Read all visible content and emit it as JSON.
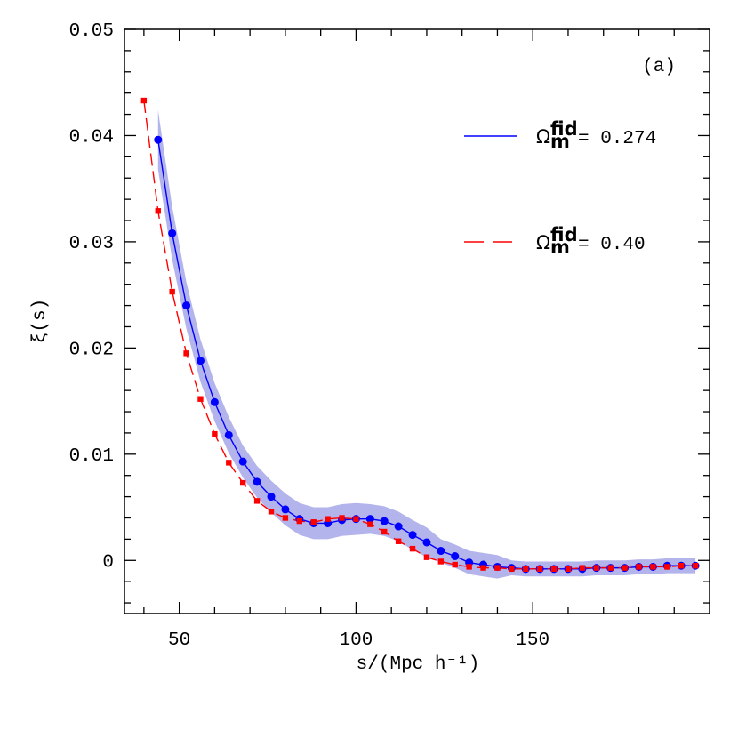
{
  "chart_data": {
    "type": "line",
    "xlabel": "s/(Mpc h⁻¹)",
    "ylabel": "ξ(s)",
    "annotation": "(a)",
    "xlim": [
      34.5,
      200
    ],
    "ylim": [
      -0.005,
      0.05
    ],
    "xticks": [
      50,
      100,
      150
    ],
    "yticks": [
      0,
      0.01,
      0.02,
      0.03,
      0.04,
      0.05
    ],
    "xminorticks": [
      40,
      60,
      70,
      80,
      90,
      110,
      120,
      130,
      140,
      160,
      170,
      180,
      190
    ],
    "yminorticks": [
      -0.004,
      -0.002,
      0.002,
      0.004,
      0.006,
      0.008,
      0.012,
      0.014,
      0.016,
      0.018,
      0.022,
      0.024,
      0.026,
      0.028,
      0.032,
      0.034,
      0.036,
      0.038,
      0.042,
      0.044,
      0.046,
      0.048
    ],
    "band": {
      "color": "#b4b4ec",
      "x": [
        44,
        48,
        52,
        56,
        60,
        64,
        68,
        72,
        76,
        80,
        84,
        88,
        92,
        96,
        100,
        104,
        108,
        112,
        116,
        120,
        124,
        128,
        132,
        136,
        140,
        144,
        148,
        152,
        156,
        160,
        164,
        168,
        172,
        176,
        180,
        184,
        188,
        192,
        196
      ],
      "upper": [
        0.0424,
        0.0333,
        0.0262,
        0.0208,
        0.0167,
        0.0135,
        0.0108,
        0.0089,
        0.0075,
        0.0063,
        0.0054,
        0.005,
        0.005,
        0.0053,
        0.0054,
        0.0053,
        0.0051,
        0.0046,
        0.0038,
        0.0031,
        0.002,
        0.0015,
        0.0009,
        0.0007,
        0.0005,
        0.0,
        -0.0001,
        -0.0001,
        -0.0001,
        -0.0001,
        -0.0001,
        0.0,
        0.0,
        0.0,
        0.0001,
        0.0001,
        0.0002,
        0.0002,
        0.0002
      ],
      "lower": [
        0.0368,
        0.0283,
        0.0218,
        0.0168,
        0.0131,
        0.0101,
        0.0078,
        0.0059,
        0.0045,
        0.0033,
        0.0024,
        0.002,
        0.002,
        0.0023,
        0.0024,
        0.0025,
        0.0023,
        0.0018,
        0.001,
        0.0003,
        -0.0002,
        -0.0007,
        -0.0013,
        -0.0015,
        -0.0017,
        -0.0014,
        -0.0015,
        -0.0015,
        -0.0015,
        -0.0015,
        -0.0015,
        -0.0014,
        -0.0014,
        -0.0014,
        -0.0013,
        -0.0013,
        -0.0012,
        -0.0012,
        -0.0012
      ]
    },
    "series": [
      {
        "label_parts": {
          "symbol": "Ω",
          "sup": "fid",
          "sub": "m",
          "text": "= 0.274"
        },
        "color": "#0000ff",
        "dashed": false,
        "marker": "circle",
        "x": [
          44,
          48,
          52,
          56,
          60,
          64,
          68,
          72,
          76,
          80,
          84,
          88,
          92,
          96,
          100,
          104,
          108,
          112,
          116,
          120,
          124,
          128,
          132,
          136,
          140,
          144,
          148,
          152,
          156,
          160,
          164,
          168,
          172,
          176,
          180,
          184,
          188,
          192,
          196
        ],
        "values": [
          0.0396,
          0.0308,
          0.024,
          0.0188,
          0.0149,
          0.0118,
          0.0093,
          0.0074,
          0.006,
          0.0048,
          0.0039,
          0.0035,
          0.0035,
          0.0038,
          0.0039,
          0.0039,
          0.0037,
          0.0032,
          0.0024,
          0.0017,
          0.0009,
          0.0004,
          -0.0002,
          -0.0004,
          -0.0006,
          -0.0007,
          -0.0008,
          -0.0008,
          -0.0008,
          -0.0008,
          -0.0008,
          -0.0007,
          -0.0007,
          -0.0007,
          -0.0006,
          -0.0006,
          -0.0005,
          -0.0005,
          -0.0005
        ]
      },
      {
        "label_parts": {
          "symbol": "Ω",
          "sup": "fid",
          "sub": "m",
          "text": "= 0.40"
        },
        "color": "#ff0000",
        "dashed": true,
        "marker": "square",
        "x": [
          40,
          44,
          48,
          52,
          56,
          60,
          64,
          68,
          72,
          76,
          80,
          84,
          88,
          92,
          96,
          100,
          104,
          108,
          112,
          116,
          120,
          124,
          128,
          132,
          136,
          140,
          144,
          148,
          152,
          156,
          160,
          164,
          168,
          172,
          176,
          180,
          184,
          188,
          192,
          196
        ],
        "values": [
          0.0433,
          0.0329,
          0.0253,
          0.0195,
          0.0152,
          0.0119,
          0.0092,
          0.0073,
          0.0056,
          0.0046,
          0.004,
          0.0037,
          0.0036,
          0.0039,
          0.004,
          0.0039,
          0.0034,
          0.0027,
          0.0018,
          0.0011,
          0.0003,
          -0.0001,
          -0.0004,
          -0.0006,
          -0.0007,
          -0.0007,
          -0.0008,
          -0.0008,
          -0.0008,
          -0.0008,
          -0.0008,
          -0.0007,
          -0.0007,
          -0.0007,
          -0.0007,
          -0.0006,
          -0.0006,
          -0.0006,
          -0.0005,
          -0.0005
        ]
      }
    ]
  }
}
